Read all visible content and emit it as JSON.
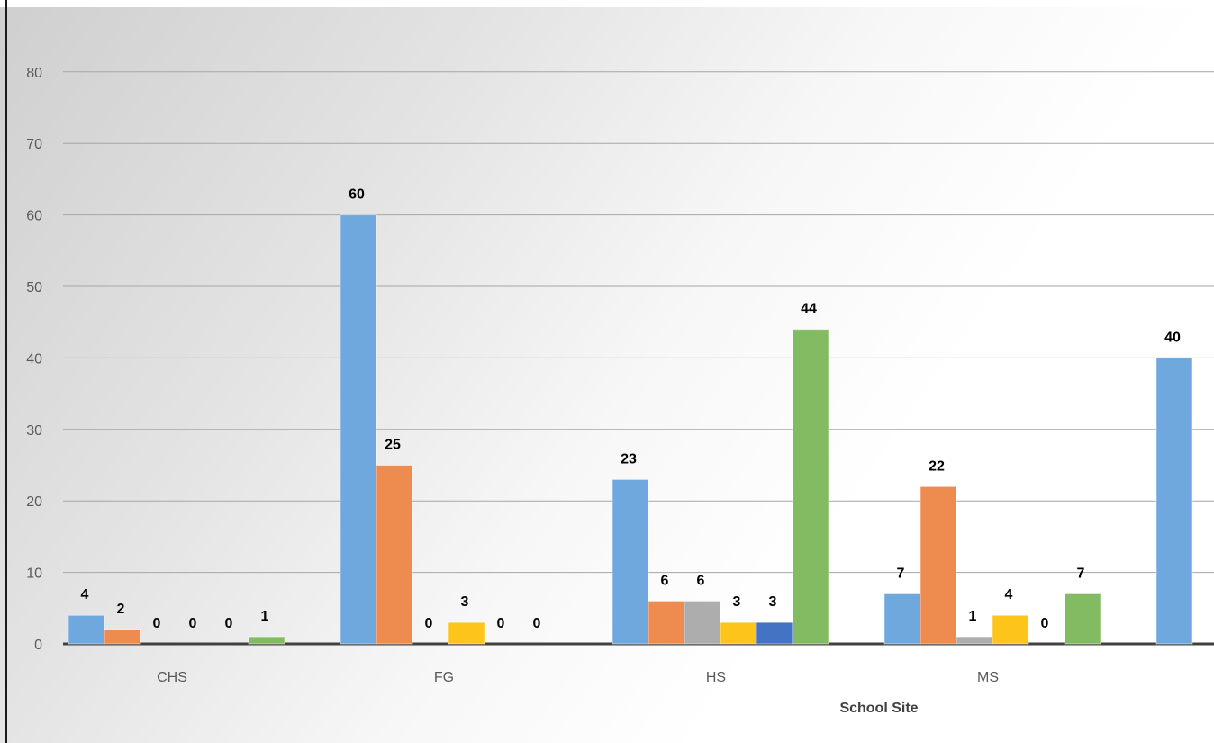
{
  "chart_data": {
    "type": "bar",
    "xlabel": "School Site",
    "ylabel": "",
    "ylim": [
      0,
      90
    ],
    "yticks": [
      0,
      10,
      20,
      30,
      40,
      50,
      60,
      70,
      80
    ],
    "grid": true,
    "categories": [
      "CHS",
      "FG",
      "HS",
      "MS",
      ""
    ],
    "series": [
      {
        "color": "#6fa8dc",
        "values": [
          4,
          60,
          23,
          7,
          40
        ]
      },
      {
        "color": "#ee8b4f",
        "values": [
          2,
          25,
          6,
          22,
          null
        ]
      },
      {
        "color": "#adadad",
        "values": [
          0,
          0,
          6,
          1,
          null
        ]
      },
      {
        "color": "#fdc41a",
        "values": [
          0,
          3,
          3,
          4,
          null
        ]
      },
      {
        "color": "#4472c4",
        "values": [
          0,
          0,
          3,
          0,
          null
        ]
      },
      {
        "color": "#82bb62",
        "values": [
          1,
          0,
          44,
          7,
          null
        ]
      }
    ]
  }
}
